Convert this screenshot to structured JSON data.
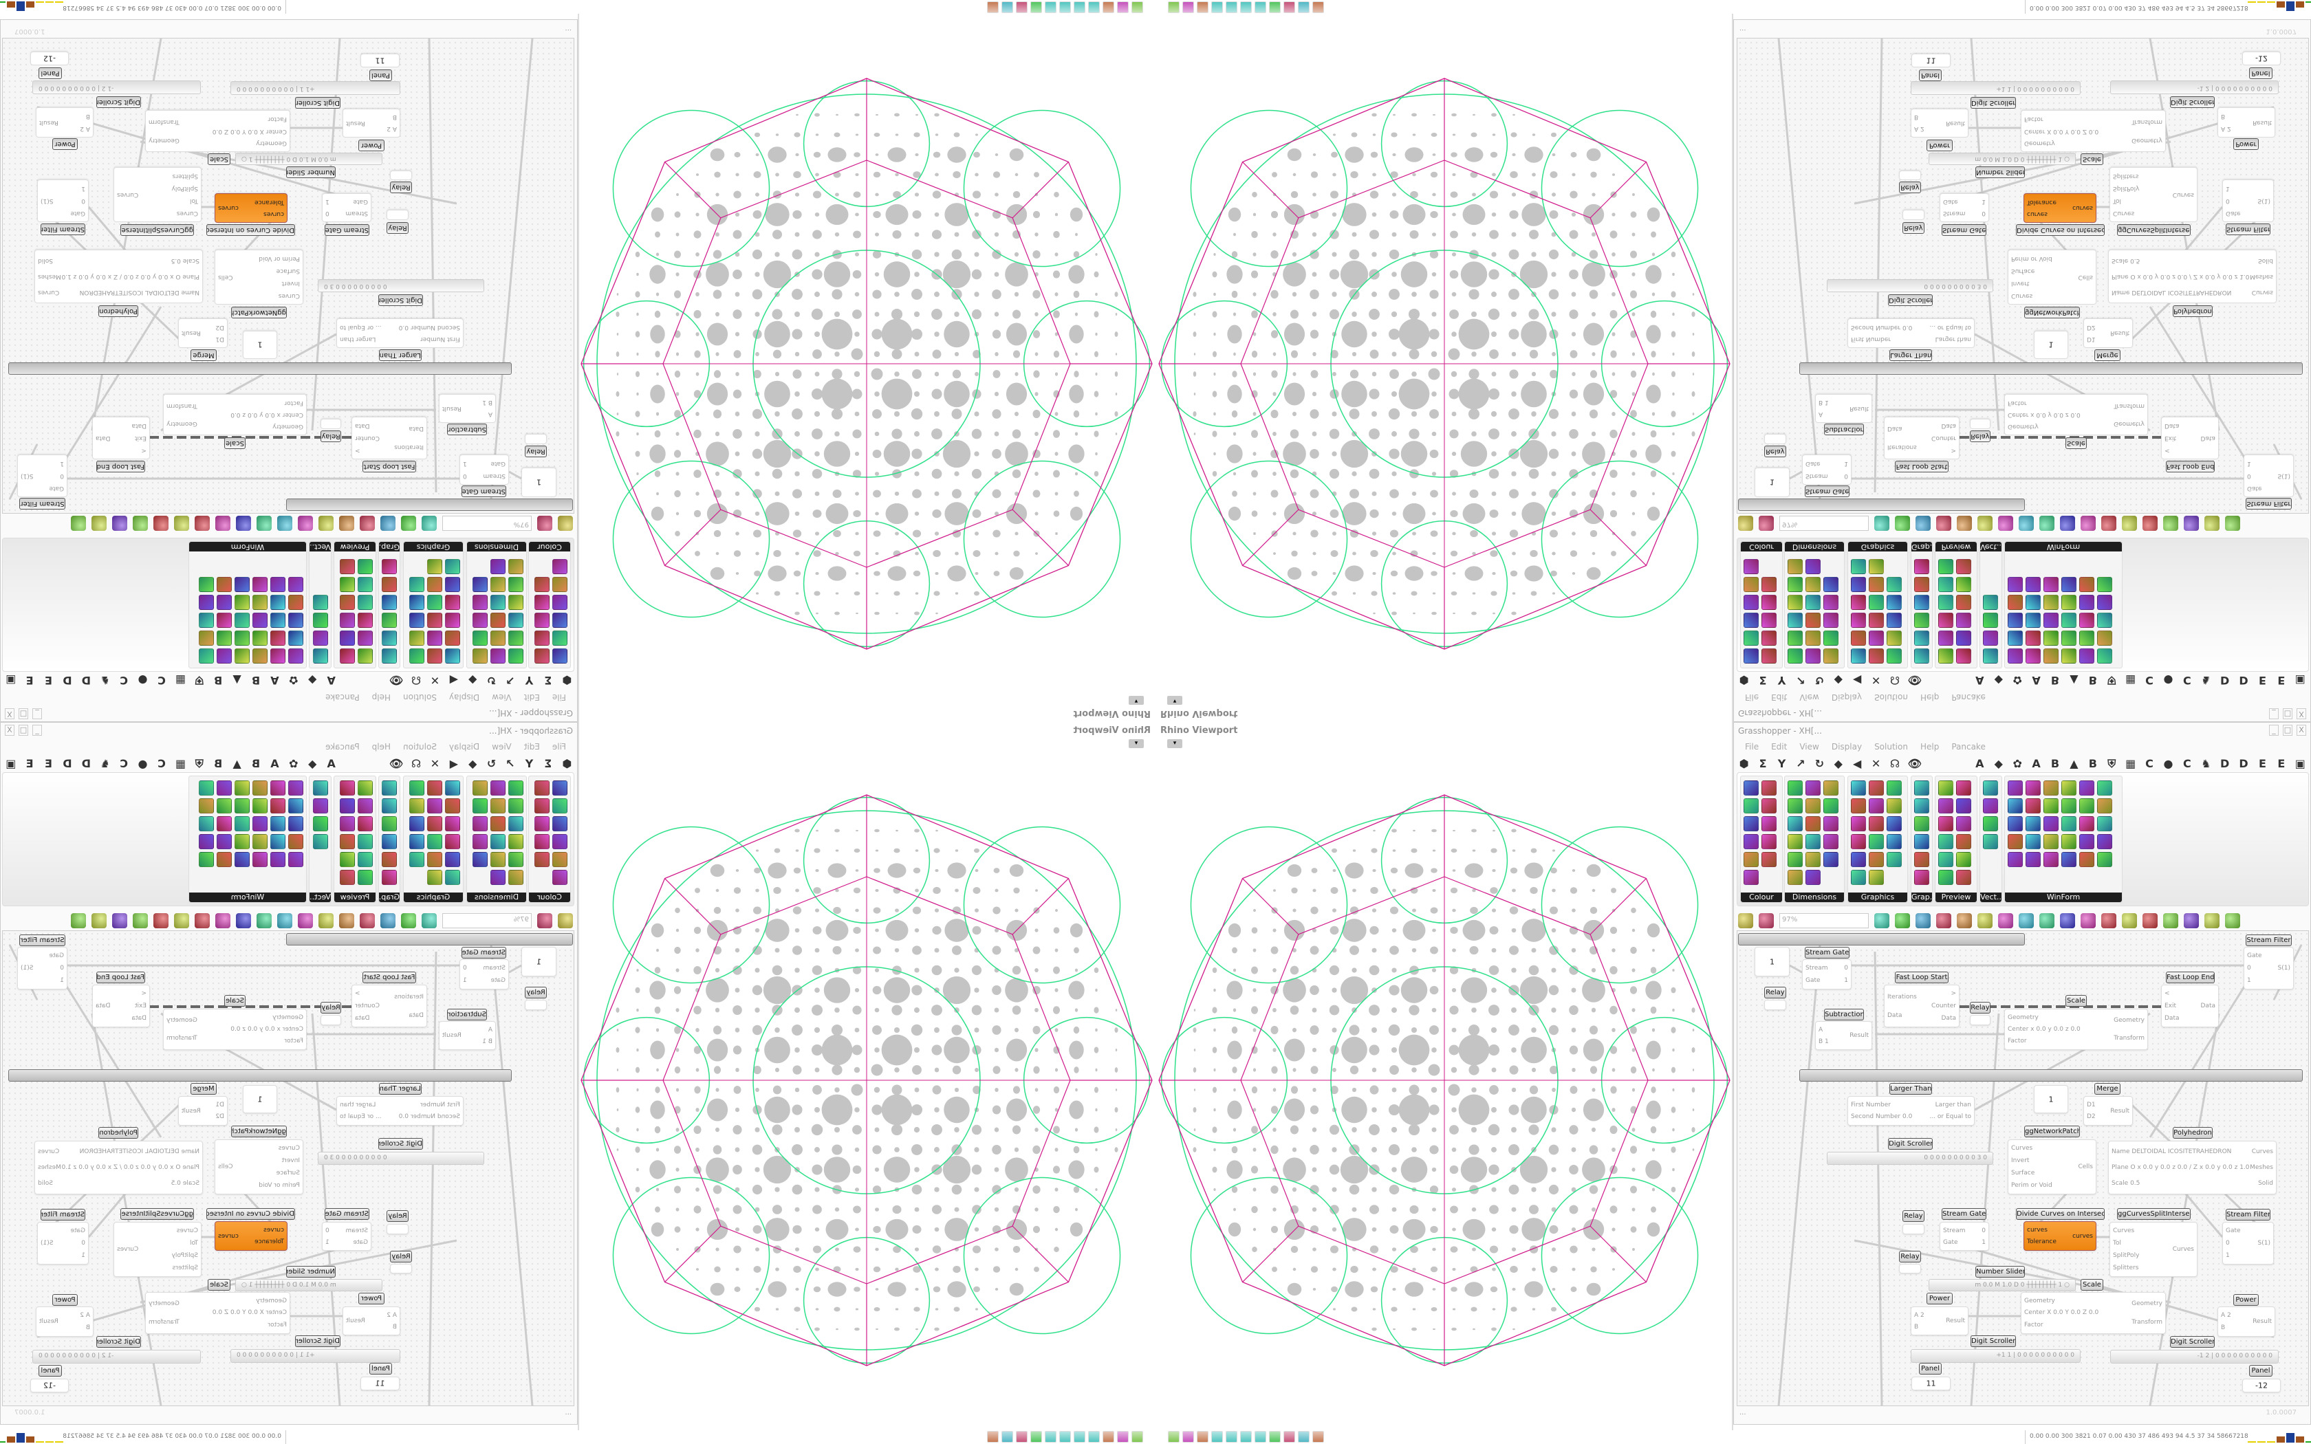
{
  "viewport": {
    "title": "Rhino Viewport",
    "menu_glyph": "▾"
  },
  "grasshopper": {
    "title": "Grasshopper - XH[...",
    "window_buttons": [
      "_",
      "□",
      "X"
    ],
    "menu": [
      "File",
      "Edit",
      "View",
      "Display",
      "Solution",
      "Help",
      "Pancake"
    ],
    "tabs_left": [
      "⬢",
      "Σ",
      "Y",
      "↗",
      "↻",
      "◆",
      "◀",
      "✕",
      "☊",
      "👁"
    ],
    "tabs_right": [
      "A",
      "◆",
      "✿",
      "A",
      "B",
      "▲",
      "B",
      "⛨",
      "▦",
      "C",
      "●",
      "C",
      "♞",
      "D",
      "D",
      "E",
      "E",
      "▣"
    ],
    "palette": [
      {
        "label": "Colour",
        "icons": [
          "colour-wheel",
          "gradient",
          "box-colour",
          "triangle-colour",
          "cube-colour",
          "hsl",
          "sphere-red",
          "hsv",
          "sphere-red-2",
          "prism",
          "gradient-swatch"
        ]
      },
      {
        "label": "Dimensions",
        "icons": [
          "tag-delete",
          "dim-linear",
          "dim-angle",
          "tag",
          "dim-line",
          "dim-box",
          "magenta-swatch",
          "dim-ticks",
          "dim-arrow",
          "grid",
          "dim-angle-2",
          "dim-cross",
          "dim-curve",
          "dim-red",
          "dim-hatch",
          "dim-line-2",
          "dim-triangle"
        ]
      },
      {
        "label": "Graphics",
        "icons": [
          "circle",
          "text-circle",
          "eye-circle",
          "dotted-circle",
          "text-t",
          "square-round",
          "blur-dot",
          "list-circle",
          "asterisk",
          "ring",
          "link",
          "save-picture",
          "sphere-gray",
          "dotted-ring",
          "save-asterisk",
          "sphere-dark",
          "picture-circle"
        ]
      },
      {
        "label": "Grap..",
        "icons": [
          "bar-graph",
          "bar-list",
          "pie-ring",
          "line-graph",
          "picture-stack",
          "line-chart"
        ]
      },
      {
        "label": "Preview",
        "icons": [
          "leaf-shade",
          "camera",
          "sphere-material",
          "picture-trees",
          "blob-blue",
          "heart-blue",
          "blob-red",
          "heart-green",
          "gradient-line",
          "hearts",
          "sl-text",
          "picture-tree"
        ]
      },
      {
        "label": "Vect..",
        "icons": [
          "vector-order",
          "vector-path",
          "vector-red",
          "vector-green"
        ]
      },
      {
        "label": "WinForm",
        "icons": [
          "text-a",
          "form-list",
          "form-lines",
          "form-grid",
          "form-pie",
          "form-panel",
          "form-hatch",
          "form-scroll",
          "form-slider",
          "form-piechart",
          "form-person",
          "form-check",
          "form-text",
          "form-image",
          "form-split",
          "form-text-a",
          "form-bars",
          "form-num",
          "form-3d",
          "form-list-2",
          "form-green",
          "form-ok",
          "form-toggle",
          "form-bar",
          "form-chart",
          "form-arrow",
          "form-calendar",
          "form-vslider",
          "form-label",
          "form-area"
        ]
      }
    ],
    "toolbar": {
      "zoom": "97%",
      "icons": [
        "open-file",
        "save",
        "zoom-extents",
        "eye",
        "sketch-pen",
        "bug",
        "at-sign",
        "gha",
        "preview-window",
        "search-s",
        "box-question",
        "bulb",
        "cross-wires",
        "bell",
        "rings",
        "red-solid",
        "teal-shape",
        "green-shape",
        "orange-sphere",
        "blue-sphere"
      ]
    },
    "nodes": [
      {
        "label": "Stream Filter",
        "inputs": [
          "Gate",
          "0",
          "1"
        ],
        "outputs": [
          "S(1)"
        ]
      },
      {
        "label": "",
        "value": "1",
        "inputs": [],
        "outputs": []
      },
      {
        "label": "Stream Gate",
        "inputs": [
          "Stream",
          "Gate"
        ],
        "outputs": [
          "0",
          "1"
        ]
      },
      {
        "label": "Fast Loop Start",
        "inputs": [
          "Iterations",
          "Data"
        ],
        "outputs": [
          ">",
          "Counter",
          "Data"
        ]
      },
      {
        "label": "Relay",
        "inputs": [],
        "outputs": []
      },
      {
        "label": "Subtraction",
        "inputs": [
          "A",
          "B 1"
        ],
        "outputs": [
          "Result"
        ]
      },
      {
        "label": "Relay",
        "inputs": [],
        "outputs": []
      },
      {
        "label": "Scale",
        "inputs": [
          "Geometry",
          "Center x 0.0 y 0.0 z 0.0",
          "Factor"
        ],
        "outputs": [
          "Geometry",
          "Transform"
        ]
      },
      {
        "label": "Fast Loop End",
        "inputs": [
          "<",
          "Exit",
          "Data"
        ],
        "outputs": [
          "Data"
        ]
      },
      {
        "label": "Larger Than",
        "inputs": [
          "First Number",
          "Second Number 0.0"
        ],
        "outputs": [
          "Larger than",
          "... or Equal to"
        ]
      },
      {
        "label": "",
        "value": "1",
        "inputs": [],
        "outputs": []
      },
      {
        "label": "Merge",
        "inputs": [
          "D1",
          "D2"
        ],
        "outputs": [
          "Result"
        ]
      },
      {
        "label": "ggNetworkPatch",
        "inputs": [
          "Curves",
          "Invert",
          "Surface",
          "Perim or Void"
        ],
        "outputs": [
          "Cells"
        ]
      },
      {
        "label": "Polyhedron",
        "inputs": [
          "Name DELTOIDAL ICOSITETRAHEDRON",
          "Plane  O x 0.0 y 0.0 z 0.0 / Z x 0.0 y 0.0 z 1.0",
          "Scale 0.5"
        ],
        "outputs": [
          "Curves",
          "Meshes",
          "Solid"
        ]
      },
      {
        "label": "Digit Scroller",
        "slider": "0 0 0 0 0 0 0 0 0 3 0"
      },
      {
        "label": "Relay",
        "inputs": [],
        "outputs": []
      },
      {
        "label": "Stream Gate",
        "inputs": [
          "Stream",
          "Gate"
        ],
        "outputs": [
          "0",
          "1"
        ]
      },
      {
        "label": "Divide Curves on Intersects",
        "inputs": [
          "curves",
          "Tolerance"
        ],
        "outputs": [
          "curves"
        ],
        "orange": true
      },
      {
        "label": "ggCurvesSplitIntersect",
        "inputs": [
          "Curves",
          "Tol",
          "SplitPoly",
          "Splitters"
        ],
        "outputs": [
          "Curves"
        ]
      },
      {
        "label": "Stream Filter",
        "inputs": [
          "Gate",
          "0",
          "1"
        ],
        "outputs": [
          "S(1)"
        ]
      },
      {
        "label": "Relay",
        "inputs": [],
        "outputs": []
      },
      {
        "label": "Number Slider",
        "slider": "m 0.0  M 1.0  D 0  ┼┼┼┼┼┼┼┼ 1 ○"
      },
      {
        "label": "Scale",
        "inputs": [
          "Geometry",
          "Center X 0.0 Y 0.0 Z 0.0",
          "Factor"
        ],
        "outputs": [
          "Geometry",
          "Transform"
        ]
      },
      {
        "label": "Power",
        "inputs": [
          "A 2",
          "B"
        ],
        "outputs": [
          "Result"
        ]
      },
      {
        "label": "Power",
        "inputs": [
          "A 2",
          "B"
        ],
        "outputs": [
          "Result"
        ]
      },
      {
        "label": "Digit Scroller",
        "slider": "+1 1 | 0 0 0 0 0 0 0 0 0 0"
      },
      {
        "label": "Digit Scroller",
        "slider": "-1 2 | 0 0 0 0 0 0 0 0 0 0"
      },
      {
        "label": "Panel",
        "value": "11",
        "inputs": [],
        "outputs": []
      },
      {
        "label": "Panel",
        "value": "-12",
        "inputs": [],
        "outputs": []
      }
    ],
    "status": "...",
    "version": "1.0.0007"
  },
  "taskbar": {
    "icons": [
      "inkscape",
      "firefox",
      "red-app",
      "notepad",
      "notepad",
      "notepad",
      "notepad",
      "folder",
      "blank",
      "floppy-64",
      "terminal"
    ],
    "perf": "0.00 0.00 300 3821 0.07 0.00 430  37  486  493  94  4.5  37  34  58667218",
    "perf_colors": [
      "#e6d000",
      "#e6d000",
      "#e6d000",
      "#a0521d",
      "#1c3f96",
      "#a0521d",
      "#22aa22",
      "#cc2222"
    ]
  },
  "colors": {
    "outline": "#d01a8a",
    "network": "#2ee08a",
    "holes": "#c4c4c4",
    "orange": "#f39422"
  }
}
